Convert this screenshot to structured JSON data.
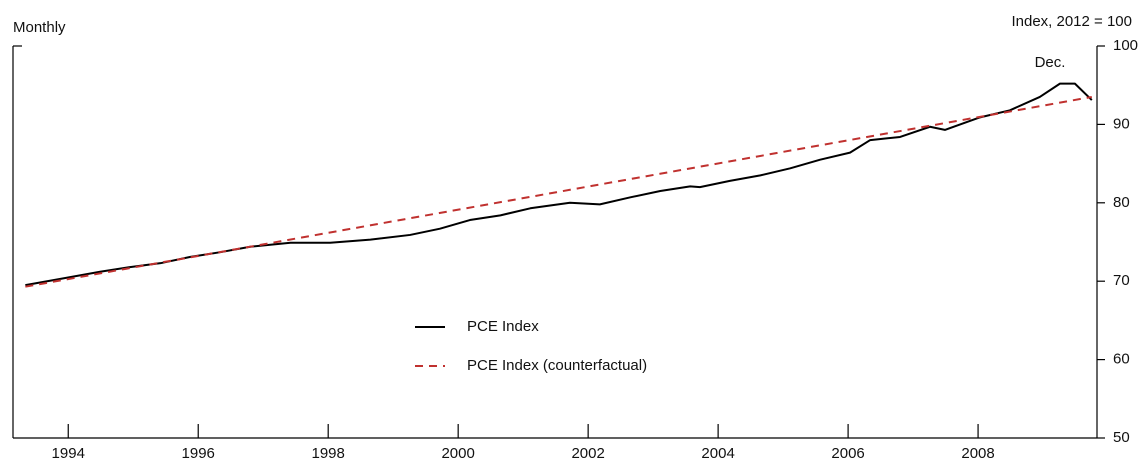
{
  "chart_data": {
    "type": "line",
    "subtitle": "Monthly",
    "y_axis_label": "Index, 2012 = 100",
    "annotation": "Dec.",
    "xlim": [
      1993.15,
      2009.83
    ],
    "xticks": [
      1994,
      1996,
      1998,
      2000,
      2002,
      2004,
      2006,
      2008
    ],
    "ylim": [
      50,
      100
    ],
    "yticks": [
      50,
      60,
      70,
      80,
      90,
      100
    ],
    "series": [
      {
        "name": "PCE Index",
        "color": "#000000",
        "dashed": false,
        "x": [
          1993.34,
          1993.88,
          1994.49,
          1994.95,
          1995.42,
          1995.88,
          1996.34,
          1996.8,
          1997.42,
          1998.03,
          1998.65,
          1999.26,
          1999.72,
          2000.18,
          2000.65,
          2001.11,
          2001.72,
          2002.18,
          2002.65,
          2003.11,
          2003.57,
          2003.72,
          2004.18,
          2004.65,
          2005.11,
          2005.57,
          2006.03,
          2006.34,
          2006.8,
          2007.26,
          2007.49,
          2008.03,
          2008.49,
          2008.95,
          2009.26,
          2009.49,
          2009.75
        ],
        "values": [
          69.5,
          70.3,
          71.2,
          71.8,
          72.3,
          73.1,
          73.7,
          74.4,
          74.9,
          74.9,
          75.3,
          75.9,
          76.7,
          77.8,
          78.4,
          79.3,
          80.0,
          79.8,
          80.7,
          81.5,
          82.1,
          82.0,
          82.8,
          83.5,
          84.4,
          85.5,
          86.4,
          88.0,
          88.4,
          89.7,
          89.3,
          90.9,
          91.8,
          93.5,
          95.2,
          95.2,
          93.1
        ]
      },
      {
        "name": "PCE Index (counterfactual)",
        "color": "#c0312f",
        "dashed": true,
        "x": [
          1993.34,
          2009.75
        ],
        "values": [
          69.3,
          93.5
        ]
      }
    ]
  }
}
